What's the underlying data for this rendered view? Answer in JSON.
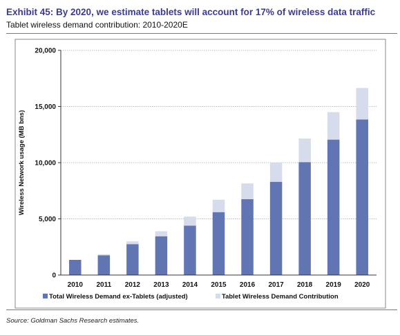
{
  "header": {
    "title": "Exhibit 45: By 2020, we estimate tablets will account for 17% of wireless data traffic",
    "subtitle": "Tablet wireless demand contribution: 2010-2020E"
  },
  "footer": {
    "source": "Source: Goldman Sachs Research estimates."
  },
  "colors": {
    "title": "#3a3a99",
    "series_base": "#6175b3",
    "series_tablet": "#d6dcec",
    "gridline": "#bdbdbd"
  },
  "chart_data": {
    "type": "bar",
    "stacked": true,
    "categories": [
      "2010",
      "2011",
      "2012",
      "2013",
      "2014",
      "2015",
      "2016",
      "2017",
      "2018",
      "2019",
      "2020"
    ],
    "series": [
      {
        "name": "Total Wireless Demand ex-Tablets (adjusted)",
        "values": [
          1350,
          1750,
          2750,
          3450,
          4400,
          5600,
          6750,
          8300,
          10050,
          12050,
          13850
        ]
      },
      {
        "name": "Tablet Wireless Demand Contribution",
        "values": [
          0,
          100,
          250,
          450,
          800,
          1100,
          1400,
          1700,
          2100,
          2450,
          2800
        ]
      }
    ],
    "ylabel": "Wireless Network usage (MB bns)",
    "xlabel": "",
    "ylim": [
      0,
      20000
    ],
    "yticks": [
      "0",
      "5,000",
      "10,000",
      "15,000",
      "20,000"
    ],
    "ytick_values": [
      0,
      5000,
      10000,
      15000,
      20000
    ],
    "grid": true,
    "legend_position": "bottom"
  }
}
